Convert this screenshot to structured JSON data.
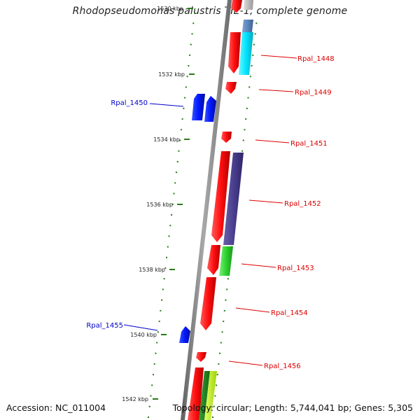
{
  "title": "Rhodopseudomonas palustris TIE-1, complete genome",
  "footer": {
    "accession": "Accession: NC_011004",
    "summary": "Topology: circular; Length: 5,744,041 bp; Genes: 5,305"
  },
  "colors": {
    "axis": "#888888",
    "tick": "#2a7a1a",
    "forward_label": "#dd0000",
    "reverse_label": "#0000cc",
    "forward_gene": "#ff1a1a",
    "reverse_gene": "#0018ff"
  },
  "scale": {
    "ticks": [
      {
        "label": "1530 kbp"
      },
      {
        "label": "1532 kbp"
      },
      {
        "label": "1534 kbp"
      },
      {
        "label": "1536 kbp"
      },
      {
        "label": "1538 kbp"
      },
      {
        "label": "1540 kbp"
      },
      {
        "label": "1542 kbp"
      }
    ]
  },
  "gene_labels": [
    {
      "id": "Rpal_1448",
      "strand": "forward"
    },
    {
      "id": "Rpal_1449",
      "strand": "forward"
    },
    {
      "id": "Rpal_1450",
      "strand": "reverse"
    },
    {
      "id": "Rpal_1451",
      "strand": "forward"
    },
    {
      "id": "Rpal_1452",
      "strand": "forward"
    },
    {
      "id": "Rpal_1453",
      "strand": "forward"
    },
    {
      "id": "Rpal_1454",
      "strand": "forward"
    },
    {
      "id": "Rpal_1455",
      "strand": "reverse"
    },
    {
      "id": "Rpal_1456",
      "strand": "forward"
    }
  ]
}
